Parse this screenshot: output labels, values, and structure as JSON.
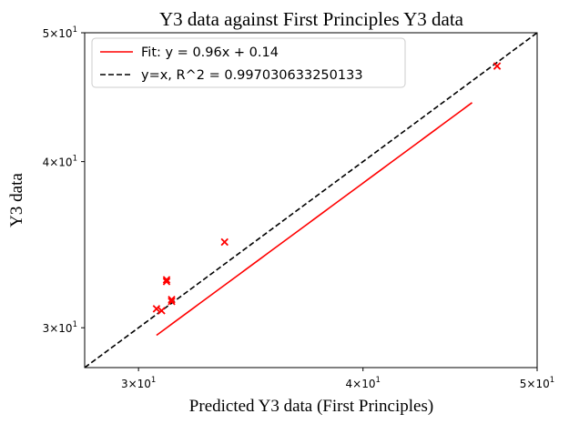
{
  "chart_data": {
    "type": "scatter",
    "title": "Y3 data against First Principles Y3 data",
    "xlabel": "Predicted Y3 data (First Principles)",
    "ylabel": "Y3 data",
    "xscale": "log",
    "yscale": "log",
    "xlim": [
      28.0,
      50.0
    ],
    "ylim": [
      28.0,
      50.0
    ],
    "x_ticks": [
      {
        "value": 30,
        "mantissa": "3",
        "label": "3×10¹"
      },
      {
        "value": 40,
        "mantissa": "4",
        "label": "4×10¹"
      },
      {
        "value": 50,
        "mantissa": "5",
        "label": "5×10¹"
      }
    ],
    "y_ticks": [
      {
        "value": 30,
        "mantissa": "3",
        "label": "3×10¹"
      },
      {
        "value": 40,
        "mantissa": "4",
        "label": "4×10¹"
      },
      {
        "value": 50,
        "mantissa": "5",
        "label": "5×10¹"
      }
    ],
    "tick_base": "10",
    "tick_exponent": "1",
    "grid": false,
    "legend_position": "top-left",
    "series": [
      {
        "kind": "scatter",
        "marker": "x",
        "color": "#ff0000",
        "points": [
          {
            "x": 30.7,
            "y": 31.0
          },
          {
            "x": 30.9,
            "y": 30.9
          },
          {
            "x": 31.1,
            "y": 32.5
          },
          {
            "x": 31.1,
            "y": 32.6
          },
          {
            "x": 31.3,
            "y": 31.4
          },
          {
            "x": 31.3,
            "y": 31.5
          },
          {
            "x": 33.5,
            "y": 34.8
          },
          {
            "x": 47.5,
            "y": 47.2
          }
        ]
      },
      {
        "kind": "line",
        "name": "Fit: y = 0.96x + 0.14",
        "color": "#ff0000",
        "style": "solid",
        "slope": 0.96,
        "intercept": 0.14,
        "x_range": [
          30.7,
          46.0
        ]
      },
      {
        "kind": "line",
        "name": "y=x, R^2 = 0.997030633250133",
        "color": "#000000",
        "style": "dashed",
        "slope": 1,
        "intercept": 0
      }
    ]
  }
}
